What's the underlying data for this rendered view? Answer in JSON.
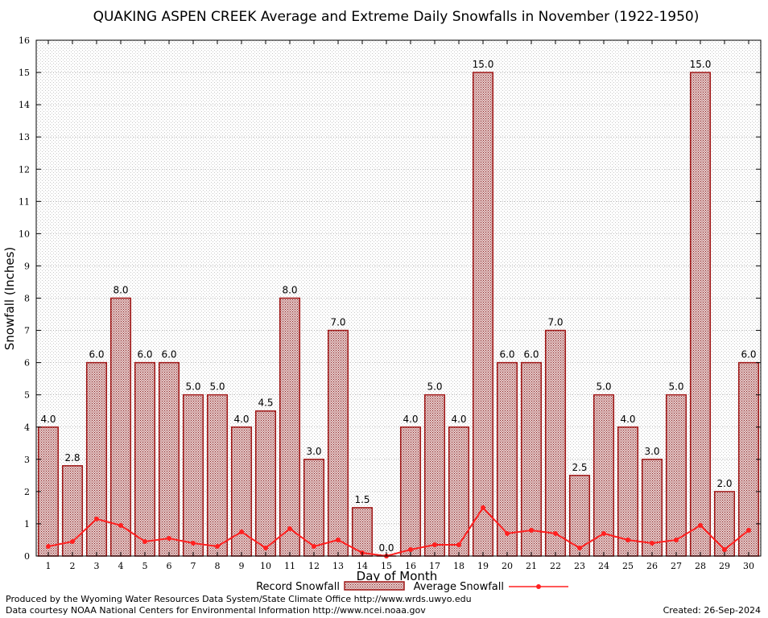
{
  "chart_data": {
    "type": "bar",
    "title": "QUAKING ASPEN CREEK Average and Extreme Daily Snowfalls in November (1922-1950)",
    "xlabel": "Day of Month",
    "ylabel": "Snowfall (Inches)",
    "ylim": [
      0,
      16
    ],
    "yticks": [
      "0",
      "1",
      "2",
      "3",
      "4",
      "5",
      "6",
      "7",
      "8",
      "9",
      "10",
      "11",
      "12",
      "13",
      "14",
      "15",
      "16"
    ],
    "categories": [
      "1",
      "2",
      "3",
      "4",
      "5",
      "6",
      "7",
      "8",
      "9",
      "10",
      "11",
      "12",
      "13",
      "14",
      "15",
      "16",
      "17",
      "18",
      "19",
      "20",
      "21",
      "22",
      "23",
      "24",
      "25",
      "26",
      "27",
      "28",
      "29",
      "30"
    ],
    "series": [
      {
        "name": "Record Snowfall",
        "kind": "bar",
        "color": "#a01818",
        "values": [
          4.0,
          2.8,
          6.0,
          8.0,
          6.0,
          6.0,
          5.0,
          5.0,
          4.0,
          4.5,
          8.0,
          3.0,
          7.0,
          1.5,
          0.0,
          4.0,
          5.0,
          4.0,
          15.0,
          6.0,
          6.0,
          7.0,
          2.5,
          5.0,
          4.0,
          3.0,
          5.0,
          15.0,
          2.0,
          6.0
        ],
        "labels": [
          "4.0",
          "2.8",
          "6.0",
          "8.0",
          "6.0",
          "6.0",
          "5.0",
          "5.0",
          "4.0",
          "4.5",
          "8.0",
          "3.0",
          "7.0",
          "1.5",
          "0.0",
          "4.0",
          "5.0",
          "4.0",
          "15.0",
          "6.0",
          "6.0",
          "7.0",
          "2.5",
          "5.0",
          "4.0",
          "3.0",
          "5.0",
          "15.0",
          "2.0",
          "6.0"
        ]
      },
      {
        "name": "Average Snowfall",
        "kind": "line",
        "color": "#ff2020",
        "values": [
          0.3,
          0.45,
          1.15,
          0.95,
          0.45,
          0.55,
          0.4,
          0.3,
          0.75,
          0.25,
          0.85,
          0.3,
          0.5,
          0.1,
          0.0,
          0.2,
          0.35,
          0.35,
          1.5,
          0.7,
          0.8,
          0.7,
          0.25,
          0.7,
          0.5,
          0.4,
          0.5,
          0.95,
          0.2,
          0.8
        ]
      }
    ],
    "grid": true,
    "legend": "bottom-center"
  },
  "footer": {
    "line1": "Produced by the Wyoming Water Resources Data System/State Climate Office http://www.wrds.uwyo.edu",
    "line2": "Data courtesy NOAA National Centers for Environmental Information http://www.ncei.noaa.gov",
    "created": "Created:  26-Sep-2024"
  }
}
